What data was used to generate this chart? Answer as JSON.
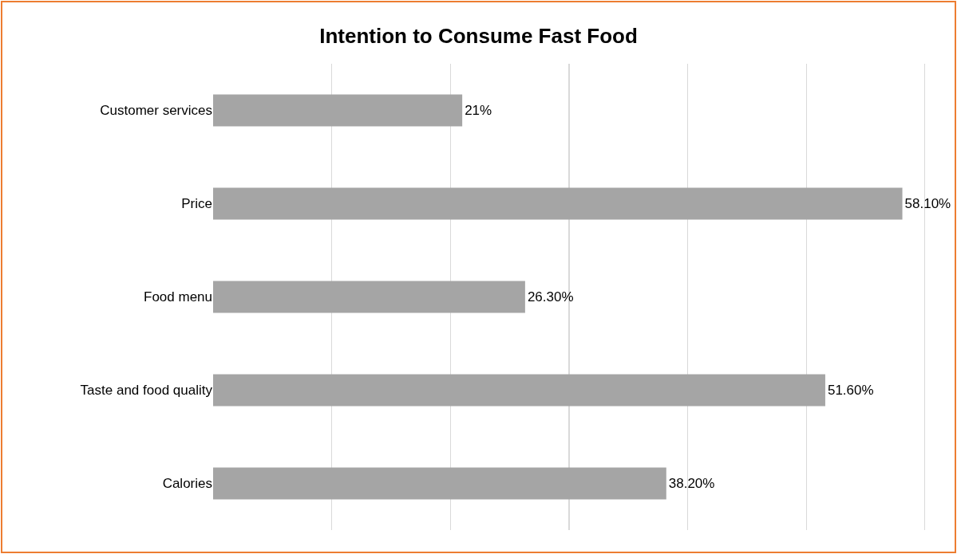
{
  "chart_data": {
    "type": "bar",
    "orientation": "horizontal",
    "title": "Intention to Consume Fast Food",
    "categories": [
      "Customer services",
      "Price",
      "Food menu",
      "Taste and food quality",
      "Calories"
    ],
    "values": [
      21,
      58.1,
      26.3,
      51.6,
      38.2
    ],
    "value_labels": [
      "21%",
      "58.10%",
      "26.30%",
      "51.60%",
      "38.20%"
    ],
    "color": "#a5a5a5",
    "grid": "x",
    "tick_labels": "y"
  }
}
